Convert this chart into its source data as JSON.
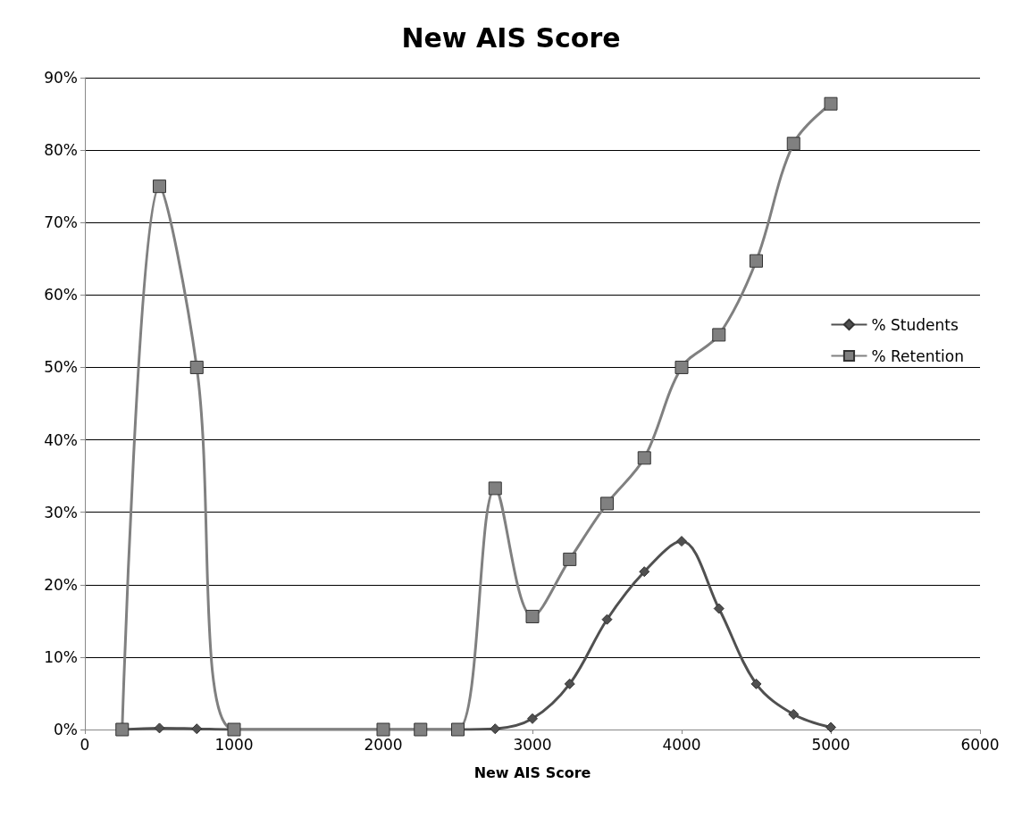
{
  "chart_data": {
    "type": "line",
    "title": "New AIS Score",
    "xlabel": "New AIS Score",
    "x": [
      250,
      500,
      750,
      1000,
      2000,
      2250,
      2500,
      2750,
      3000,
      3250,
      3500,
      3750,
      4000,
      4250,
      4500,
      4750,
      5000
    ],
    "series": [
      {
        "name": "% Students",
        "color": "#505050",
        "marker": "diamond",
        "values": [
          0,
          0.2,
          0.1,
          0,
          0,
          0,
          0,
          0.1,
          1.5,
          6.3,
          15.2,
          21.8,
          26,
          16.7,
          6.3,
          2.1,
          0.3
        ]
      },
      {
        "name": "% Retention",
        "color": "#808080",
        "marker": "square",
        "values": [
          0,
          75,
          50,
          0,
          0,
          0,
          0,
          33.3,
          15.6,
          23.5,
          31.2,
          37.5,
          50,
          54.5,
          64.7,
          80.9,
          86.4
        ]
      }
    ],
    "xlim": [
      0,
      6000
    ],
    "xticks": [
      0,
      1000,
      2000,
      3000,
      4000,
      5000,
      6000
    ],
    "ylim": [
      0,
      90
    ],
    "yticks": [
      {
        "value": 0,
        "label": "0%"
      },
      {
        "value": 10,
        "label": "10%"
      },
      {
        "value": 20,
        "label": "20%"
      },
      {
        "value": 30,
        "label": "30%"
      },
      {
        "value": 40,
        "label": "40%"
      },
      {
        "value": 50,
        "label": "50%"
      },
      {
        "value": 60,
        "label": "60%"
      },
      {
        "value": 70,
        "label": "70%"
      },
      {
        "value": 80,
        "label": "80%"
      },
      {
        "value": 90,
        "label": "90%"
      }
    ],
    "grid": "y",
    "legend": "right"
  }
}
